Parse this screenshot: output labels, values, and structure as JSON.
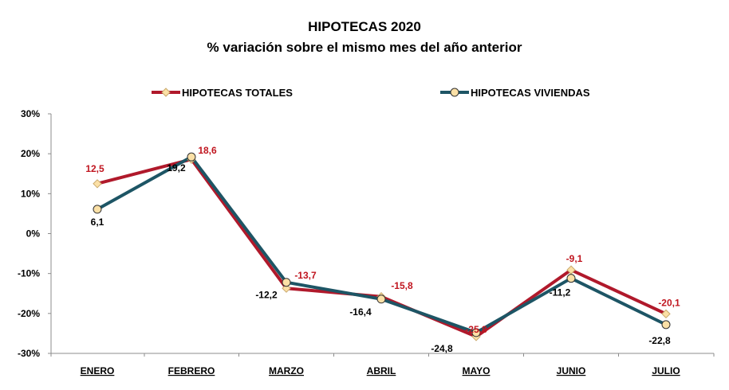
{
  "chart_data": {
    "type": "line",
    "title": "HIPOTECAS 2020",
    "subtitle": "% variación sobre el mismo mes del año anterior",
    "categories": [
      "ENERO",
      "FEBRERO",
      "MARZO",
      "ABRIL",
      "MAYO",
      "JUNIO",
      "JULIO"
    ],
    "series": [
      {
        "name": "HIPOTECAS TOTALES",
        "color": "#b0192b",
        "marker": "diamond",
        "values": [
          12.5,
          18.6,
          -13.7,
          -15.8,
          -25.8,
          -9.1,
          -20.1
        ],
        "labels": [
          "12,5",
          "18,6",
          "-13,7",
          "-15,8",
          "-25,8",
          "-9,1",
          "-20,1"
        ]
      },
      {
        "name": "HIPOTECAS VIVIENDAS",
        "color": "#1d5565",
        "marker": "circle",
        "values": [
          6.1,
          19.2,
          -12.2,
          -16.4,
          -24.8,
          -11.2,
          -22.8
        ],
        "labels": [
          "6,1",
          "19,2",
          "-12,2",
          "-16,4",
          "-24,8",
          "-11,2",
          "-22,8"
        ]
      }
    ],
    "ylim": [
      -30,
      30
    ],
    "yticks": [
      "30%",
      "20%",
      "10%",
      "0%",
      "-10%",
      "-20%",
      "-30%"
    ],
    "grid": false,
    "legend_position": "top",
    "marker_fill": "#fbe0a6"
  }
}
